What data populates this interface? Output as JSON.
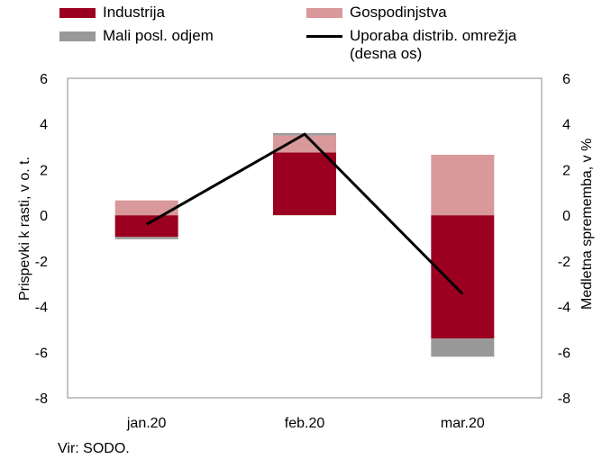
{
  "chart_data": {
    "type": "bar",
    "categories": [
      "jan.20",
      "feb.20",
      "mar.20"
    ],
    "series": [
      {
        "name": "Industrija",
        "type": "stacked-bar",
        "axis": "left",
        "color": "#9b0020",
        "values": [
          -0.95,
          2.75,
          -5.4
        ]
      },
      {
        "name": "Gospodinjstva",
        "type": "stacked-bar",
        "axis": "left",
        "color": "#d9999b",
        "values": [
          0.65,
          0.75,
          2.65
        ]
      },
      {
        "name": "Mali posl. odjem",
        "type": "stacked-bar",
        "axis": "left",
        "color": "#999999",
        "values": [
          -0.1,
          0.1,
          -0.8
        ]
      },
      {
        "name": "Uporaba distrib. omrežja\n(desna os)",
        "type": "line",
        "axis": "right",
        "color": "#000000",
        "values": [
          -0.4,
          3.55,
          -3.45
        ]
      }
    ],
    "ylabel": "Prispevki k rasti, v o. t.",
    "y2label": "Medletna sprememba, v %",
    "ylim": [
      -8,
      6
    ],
    "y2lim": [
      -8,
      6
    ],
    "yticks": [
      "6",
      "4",
      "2",
      "0",
      "-2",
      "-4",
      "-6",
      "-8"
    ],
    "y2ticks": [
      "6",
      "4",
      "2",
      "0",
      "-2",
      "-4",
      "-6",
      "-8"
    ],
    "stacked": true,
    "grid": false,
    "legend_position": "top"
  },
  "legend": {
    "items": [
      {
        "label": "Industrija",
        "color": "#9b0020",
        "kind": "box"
      },
      {
        "label": "Gospodinjstva",
        "color": "#d9999b",
        "kind": "box"
      },
      {
        "label": "Mali posl. odjem",
        "color": "#999999",
        "kind": "box"
      },
      {
        "label": "Uporaba distrib. omrežja\n(desna os)",
        "color": "#000000",
        "kind": "line"
      }
    ]
  },
  "source": "Vir: SODO."
}
